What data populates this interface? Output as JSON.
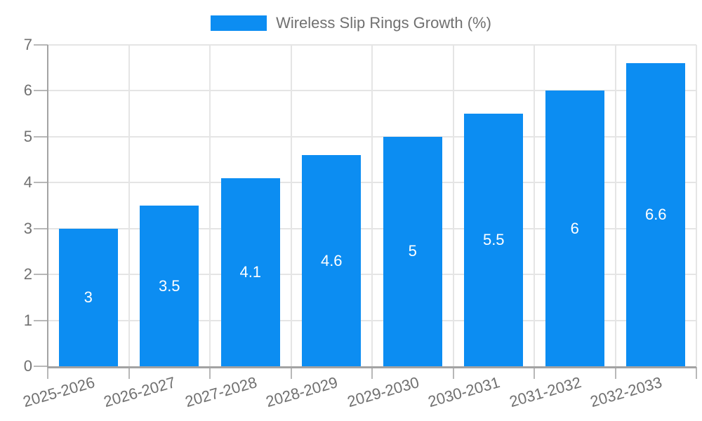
{
  "style": {
    "bar_color": "#0c8df2",
    "grid_color": "#e5e5e5",
    "axis_color": "#a3a3a3",
    "tick_color": "#b8b8b8",
    "text_color": "#707070",
    "bar_label_color": "#ffffff",
    "background_color": "#ffffff"
  },
  "chart_data": {
    "type": "bar",
    "title": "",
    "legend": [
      "Wireless Slip Rings Growth (%)"
    ],
    "legend_position": "top-center",
    "categories": [
      "2025-2026",
      "2026-2027",
      "2027-2028",
      "2028-2029",
      "2029-2030",
      "2030-2031",
      "2031-2032",
      "2032-2033"
    ],
    "series": [
      {
        "name": "Wireless Slip Rings Growth (%)",
        "values": [
          3,
          3.5,
          4.1,
          4.6,
          5,
          5.5,
          6,
          6.6
        ]
      }
    ],
    "value_labels": [
      "3",
      "3.5",
      "4.1",
      "4.6",
      "5",
      "5.5",
      "6",
      "6.6"
    ],
    "xlabel": "",
    "ylabel": "",
    "ylim": [
      0,
      7
    ],
    "ytick_labels": [
      "0",
      "1",
      "2",
      "3",
      "4",
      "5",
      "6",
      "7"
    ],
    "grid": true,
    "x_tick_rotation_deg": -16
  }
}
